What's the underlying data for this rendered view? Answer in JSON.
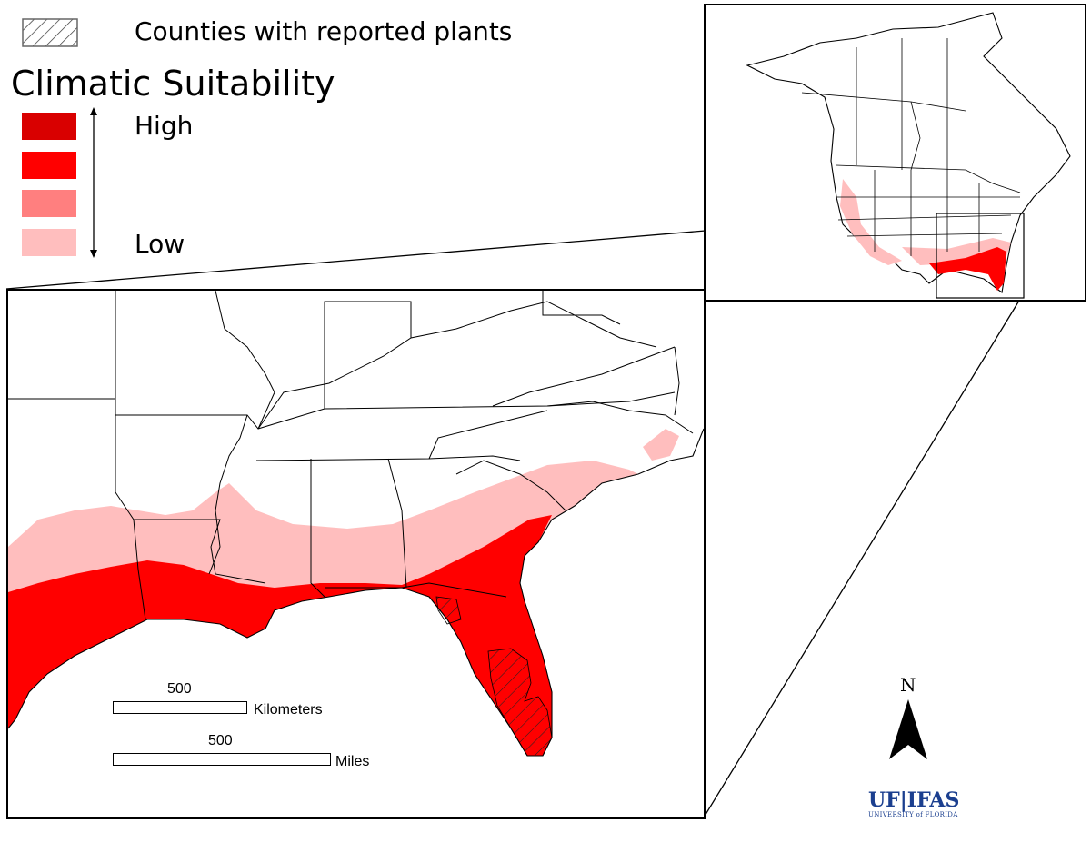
{
  "legend": {
    "hatch_label": "Counties with reported plants",
    "title": "Climatic Suitability",
    "high_label": "High",
    "low_label": "Low",
    "classes": [
      {
        "level": "highest",
        "color": "#d90000"
      },
      {
        "level": "high",
        "color": "#ff0000"
      },
      {
        "level": "medium",
        "color": "#ff7f7f"
      },
      {
        "level": "low",
        "color": "#ffbebe"
      }
    ]
  },
  "scale": {
    "km_value": "500",
    "km_unit": "Kilometers",
    "mi_value": "500",
    "mi_unit": "Miles"
  },
  "north_arrow": {
    "label": "N"
  },
  "logo": {
    "text": "UF|IFAS",
    "subtext": "UNIVERSITY of FLORIDA"
  },
  "colors": {
    "land_fill": "#ffffff",
    "border": "#000000",
    "low_suitability": "#ffbebe",
    "high_suitability": "#ff0000"
  }
}
